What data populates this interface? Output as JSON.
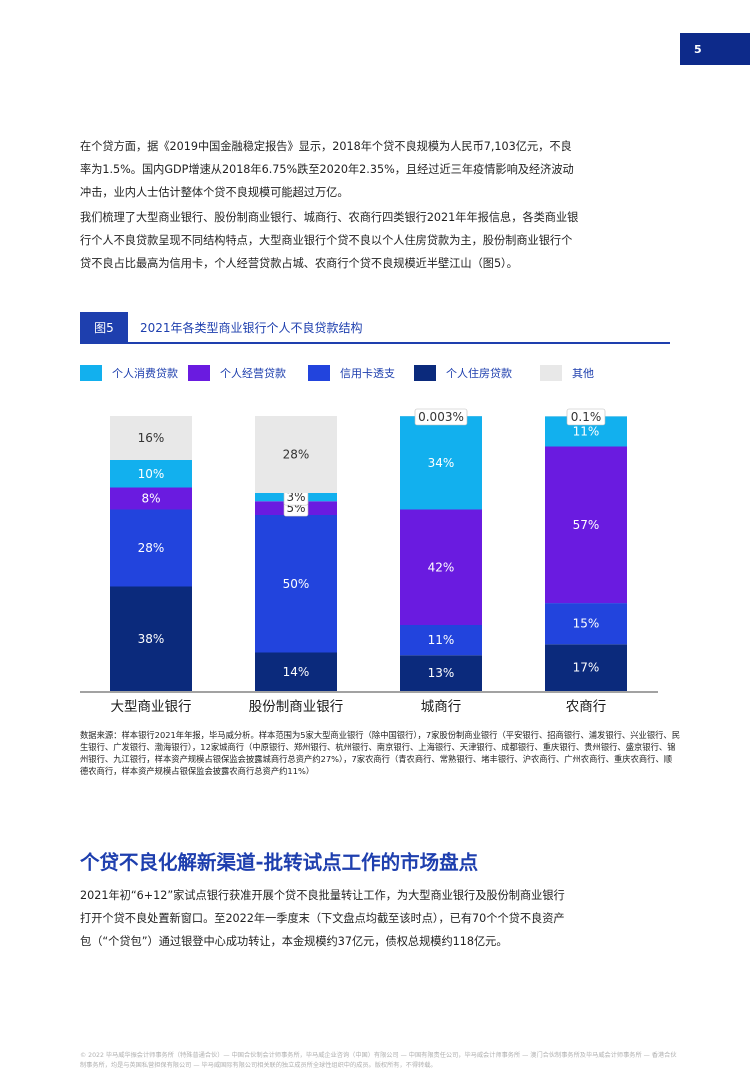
{
  "page_number": "5",
  "paragraphs": {
    "p1": "在个贷方面，据《2019中国金融稳定报告》显示，2018年个贷不良规模为人民币7,103亿元，不良率为1.5%。国内GDP增速从2018年6.75%跌至2020年2.35%，且经过近三年疫情影响及经济波动冲击，业内人士估计整体个贷不良规模可能超过万亿。",
    "p2": "我们梳理了大型商业银行、股份制商业银行、城商行、农商行四类银行2021年年报信息，各类商业银行个人不良贷款呈现不同结构特点，大型商业银行个贷不良以个人住房贷款为主，股份制商业银行个贷不良占比最高为信用卡，个人经营贷款占城、农商行个贷不良规模近半壁江山（图5）。",
    "p3": "2021年初“6+12”家试点银行获准开展个贷不良批量转让工作，为大型商业银行及股份制商业银行打开个贷不良处置新窗口。至2022年一季度末（下文盘点均截至该时点），已有70个个贷不良资产包（“个贷包”）通过银登中心成功转让，本金规模约37亿元，债权总规模约118亿元。"
  },
  "figure": {
    "tag": "图5",
    "title": "2021年各类型商业银行个人不良贷款结构"
  },
  "chart_data": {
    "type": "bar",
    "stacked": true,
    "percent": true,
    "categories": [
      "大型商业银行",
      "股份制商业银行",
      "城商行",
      "农商行"
    ],
    "series": [
      {
        "name": "个人住房贷款",
        "color": "#0b2a7c",
        "values": [
          38,
          14,
          13,
          17
        ]
      },
      {
        "name": "信用卡透支",
        "color": "#2244dd",
        "values": [
          28,
          50,
          11,
          15
        ]
      },
      {
        "name": "个人经营贷款",
        "color": "#6a1be0",
        "values": [
          8,
          5,
          42,
          57
        ]
      },
      {
        "name": "个人消费贷款",
        "color": "#12b0ee",
        "values": [
          10,
          3,
          34,
          11
        ]
      },
      {
        "name": "其他",
        "color": "#e8e8e8",
        "values": [
          16,
          28,
          0.003,
          0.1
        ]
      }
    ],
    "data_labels": [
      [
        "38%",
        "28%",
        "8%",
        "10%",
        "16%"
      ],
      [
        "14%",
        "50%",
        "5%",
        "3%",
        "28%"
      ],
      [
        "13%",
        "11%",
        "42%",
        "34%",
        "0.003%"
      ],
      [
        "17%",
        "15%",
        "57%",
        "11%",
        "0.1%"
      ]
    ],
    "legend_order": [
      "个人消费贷款",
      "个人经营贷款",
      "信用卡透支",
      "个人住房贷款",
      "其他"
    ],
    "legend_position": "top",
    "ylim": [
      0,
      100
    ],
    "grid": false
  },
  "source_note": "数据来源：样本银行2021年年报，毕马威分析。样本范围为5家大型商业银行（除中国银行），7家股份制商业银行（平安银行、招商银行、浦发银行、兴业银行、民生银行、广发银行、渤海银行），12家城商行（中原银行、郑州银行、杭州银行、南京银行、上海银行、天津银行、成都银行、重庆银行、贵州银行、盛京银行、锦州银行、九江银行，样本资产规模占银保监会披露城商行总资产约27%），7家农商行（青农商行、常熟银行、堵丰银行、沪农商行、广州农商行、重庆农商行、顺德农商行，样本资产规模占银保监会披露农商行总资产约11%）",
  "section_title": "个贷不良化解新渠道-批转试点工作的市场盘点",
  "footer": "© 2022 毕马威华振会计师事务所（特殊普通合伙）— 中国合伙制会计师事务所，毕马威企业咨询（中国）有限公司 — 中国有限责任公司，毕马威会计师事务所 — 澳门合伙制事务所及毕马威会计师事务所 — 香港合伙制事务所，均是与英国私营担保有限公司 — 毕马威国际有限公司相关联的独立成员所全球性组织中的成员。版权所有，不得转载。"
}
